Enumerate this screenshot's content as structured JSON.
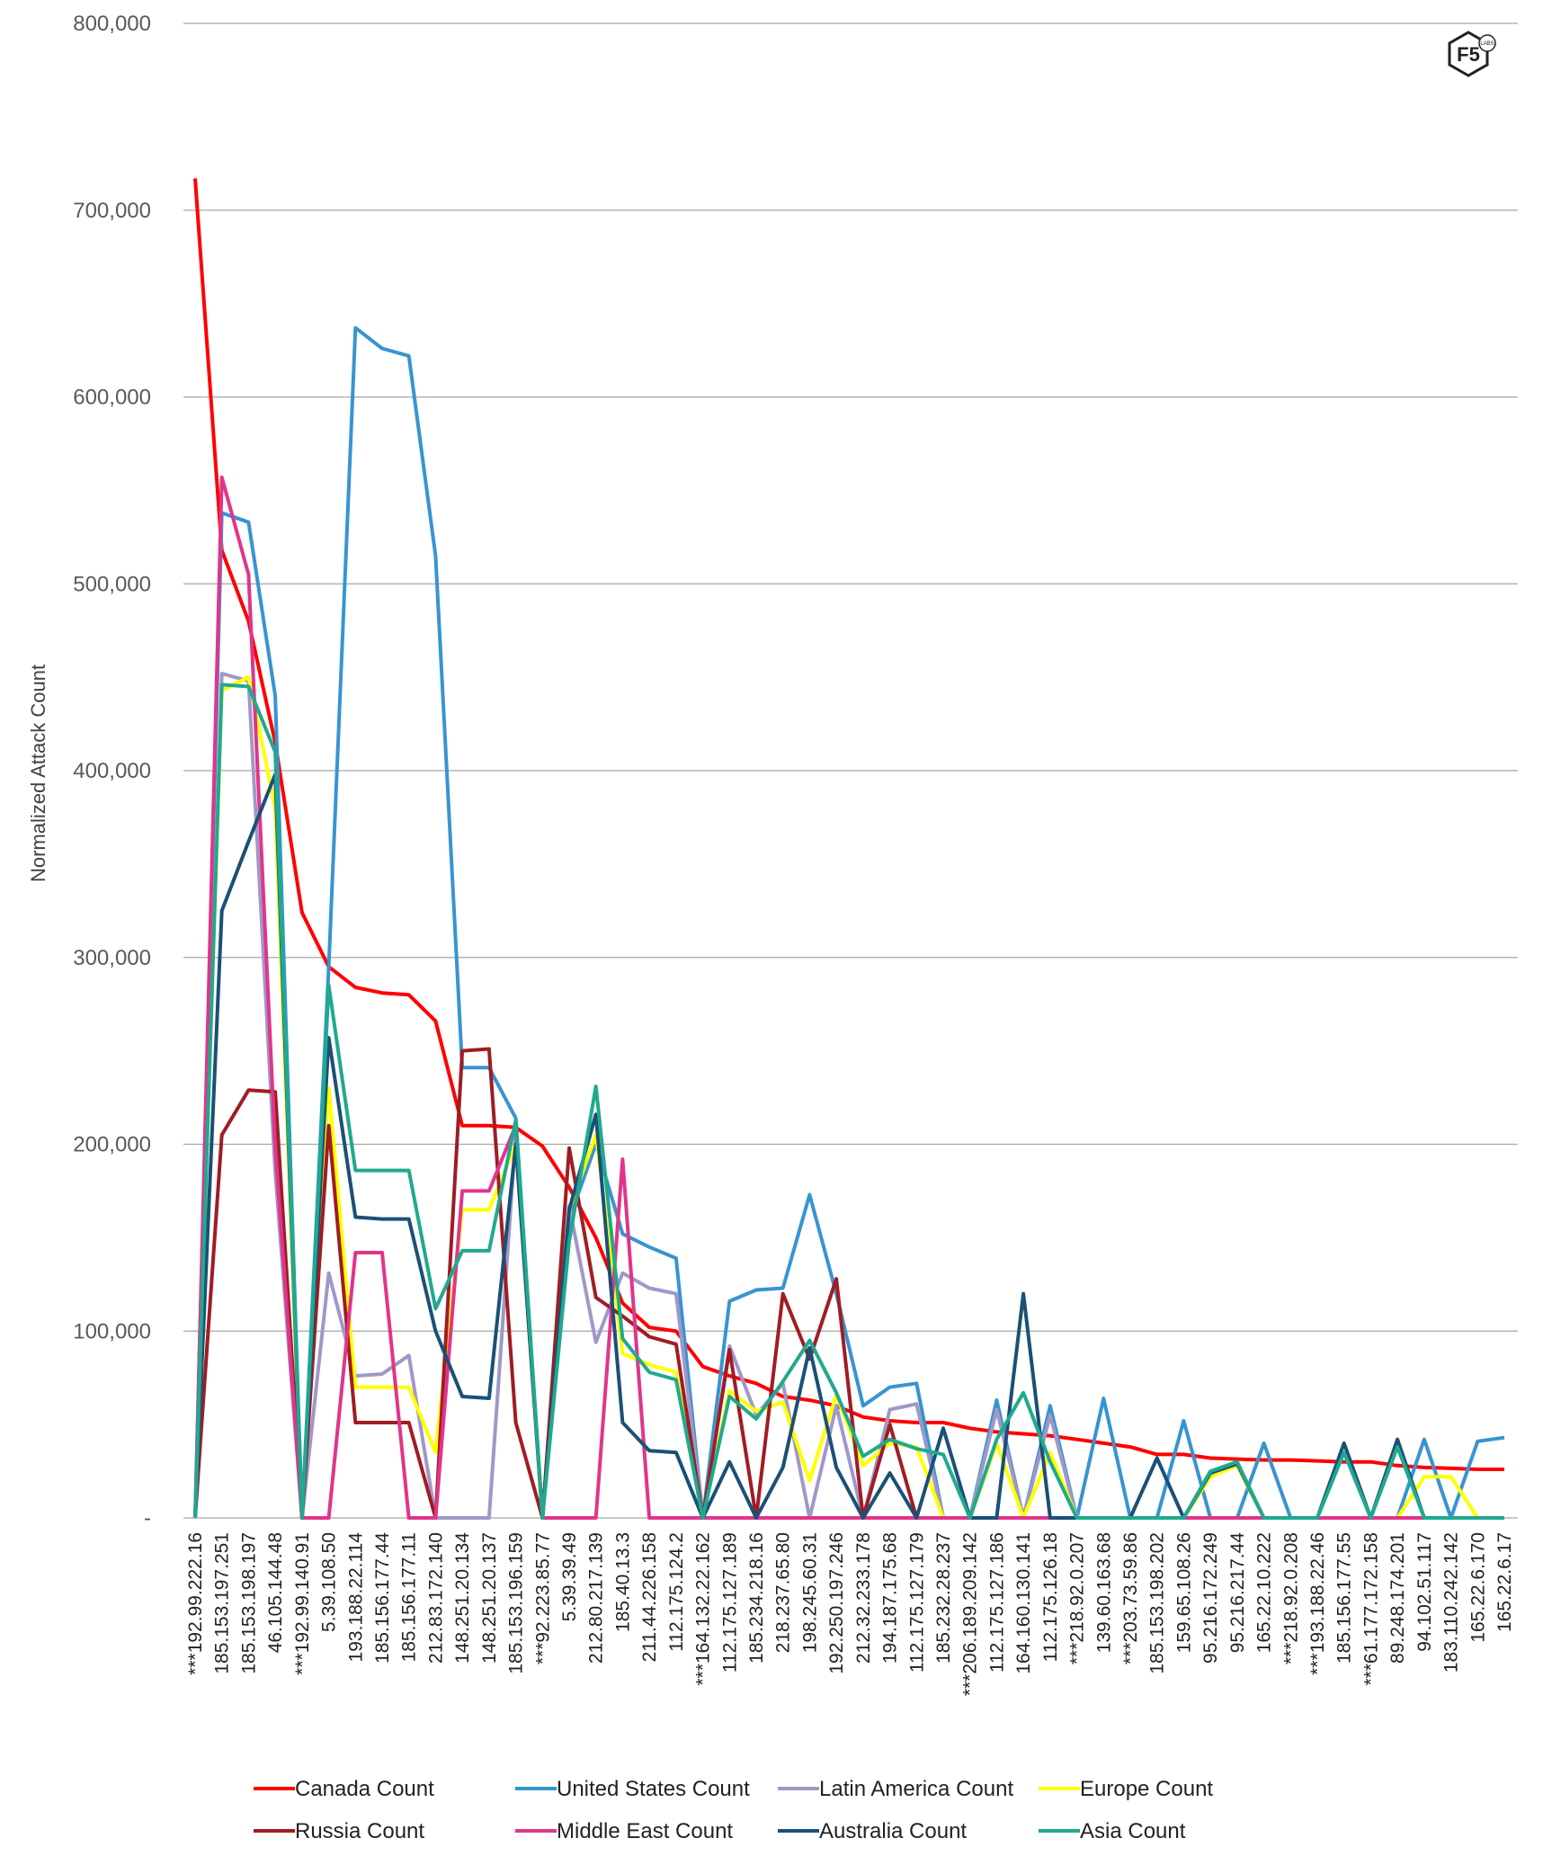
{
  "chart_data": {
    "type": "line",
    "ylabel": "Normalized Attack Count",
    "ylim": [
      0,
      800000
    ],
    "yticks": [
      0,
      100000,
      200000,
      300000,
      400000,
      500000,
      600000,
      700000,
      800000
    ],
    "ytick_labels": [
      "-",
      "100,000",
      "200,000",
      "300,000",
      "400,000",
      "500,000",
      "600,000",
      "700,000",
      "800,000"
    ],
    "grid": true,
    "legend_position": "bottom",
    "categories": [
      "***192.99.222.16",
      "185.153.197.251",
      "185.153.198.197",
      "46.105.144.48",
      "***192.99.140.91",
      "5.39.108.50",
      "193.188.22.114",
      "185.156.177.44",
      "185.156.177.11",
      "212.83.172.140",
      "148.251.20.134",
      "148.251.20.137",
      "185.153.196.159",
      "***92.223.85.77",
      "5.39.39.49",
      "212.80.217.139",
      "185.40.13.3",
      "211.44.226.158",
      "112.175.124.2",
      "***164.132.22.162",
      "112.175.127.189",
      "185.234.218.16",
      "218.237.65.80",
      "198.245.60.31",
      "192.250.197.246",
      "212.32.233.178",
      "194.187.175.68",
      "112.175.127.179",
      "185.232.28.237",
      "***206.189.209.142",
      "112.175.127.186",
      "164.160.130.141",
      "112.175.126.18",
      "***218.92.0.207",
      "139.60.163.68",
      "***203.73.59.86",
      "185.153.198.202",
      "159.65.108.26",
      "95.216.172.249",
      "95.216.217.44",
      "165.22.10.222",
      "***218.92.0.208",
      "***193.188.22.46",
      "185.156.177.55",
      "***61.177.172.158",
      "89.248.174.201",
      "94.102.51.117",
      "183.110.242.142",
      "165.22.6.170",
      "165.22.6.17"
    ],
    "series": [
      {
        "name": "Canada Count",
        "color": "#ff0000",
        "values": [
          717000,
          518000,
          480000,
          415000,
          324000,
          295000,
          284000,
          281000,
          280000,
          266000,
          210000,
          210000,
          209000,
          199000,
          177000,
          150000,
          115000,
          102000,
          100000,
          81000,
          76000,
          72000,
          65000,
          63000,
          60000,
          54000,
          52000,
          51000,
          51000,
          48000,
          46000,
          45000,
          44000,
          42000,
          40000,
          38000,
          34000,
          34000,
          32000,
          31500,
          31000,
          31000,
          30500,
          30000,
          30000,
          28000,
          27000,
          26500,
          26000,
          26000
        ]
      },
      {
        "name": "United States Count",
        "color": "#3894d1",
        "values": [
          0,
          538000,
          533000,
          440000,
          0,
          295000,
          637000,
          626000,
          622000,
          515000,
          241000,
          241000,
          214000,
          0,
          160000,
          200000,
          152000,
          145000,
          139000,
          0,
          116000,
          122000,
          123000,
          173000,
          120000,
          60000,
          70000,
          72000,
          0,
          0,
          63000,
          0,
          60000,
          0,
          64000,
          0,
          0,
          52000,
          0,
          0,
          40000,
          0,
          0,
          0,
          0,
          0,
          42000,
          0,
          41000,
          43000
        ]
      },
      {
        "name": "Latin America Count",
        "color": "#a098c8",
        "values": [
          0,
          452000,
          448000,
          185000,
          0,
          131000,
          76000,
          77000,
          87000,
          0,
          0,
          0,
          205000,
          0,
          167000,
          94000,
          131000,
          123000,
          120000,
          0,
          92000,
          55000,
          72000,
          0,
          60000,
          0,
          58000,
          61000,
          0,
          0,
          58000,
          0,
          55000,
          0,
          0,
          0,
          0,
          0,
          0,
          0,
          0,
          0,
          0,
          0,
          0,
          0,
          0,
          0,
          0,
          0
        ]
      },
      {
        "name": "Europe Count",
        "color": "#ffff00",
        "values": [
          0,
          443000,
          450000,
          380000,
          0,
          230000,
          70000,
          70000,
          70000,
          35000,
          165000,
          165000,
          200000,
          0,
          165000,
          205000,
          88000,
          82000,
          78000,
          0,
          68000,
          57000,
          62000,
          20000,
          66000,
          28000,
          40000,
          38000,
          0,
          0,
          40000,
          0,
          35000,
          0,
          0,
          0,
          0,
          0,
          22000,
          28000,
          0,
          0,
          0,
          0,
          0,
          0,
          22000,
          22000,
          0,
          0
        ]
      },
      {
        "name": "Russia Count",
        "color": "#a01c24",
        "values": [
          0,
          205000,
          229000,
          228000,
          0,
          210000,
          51000,
          51000,
          51000,
          0,
          250000,
          251000,
          51000,
          0,
          198000,
          118000,
          108000,
          97000,
          93000,
          0,
          90000,
          0,
          120000,
          85000,
          128000,
          0,
          50000,
          0,
          0,
          0,
          0,
          0,
          0,
          0,
          0,
          0,
          0,
          0,
          0,
          0,
          0,
          0,
          0,
          0,
          0,
          0,
          0,
          0,
          0,
          0
        ]
      },
      {
        "name": "Middle East Count",
        "color": "#e0358a",
        "values": [
          0,
          557000,
          505000,
          198000,
          0,
          0,
          142000,
          142000,
          0,
          0,
          175000,
          175000,
          210000,
          0,
          0,
          0,
          192000,
          0,
          0,
          0,
          0,
          0,
          0,
          0,
          0,
          0,
          0,
          0,
          0,
          0,
          0,
          0,
          0,
          0,
          0,
          0,
          0,
          0,
          0,
          0,
          0,
          0,
          0,
          0,
          0,
          0,
          0,
          0,
          0,
          0
        ]
      },
      {
        "name": "Australia Count",
        "color": "#1b5076",
        "values": [
          0,
          325000,
          362000,
          398000,
          0,
          257000,
          161000,
          160000,
          160000,
          100000,
          65000,
          64000,
          200000,
          0,
          165000,
          216000,
          51000,
          36000,
          35000,
          0,
          30000,
          0,
          27000,
          91000,
          27000,
          0,
          24000,
          0,
          48000,
          0,
          0,
          120000,
          0,
          0,
          0,
          0,
          32000,
          0,
          24000,
          29000,
          0,
          0,
          0,
          40000,
          0,
          42000,
          0,
          0,
          0,
          0
        ]
      },
      {
        "name": "Asia Count",
        "color": "#20a98e",
        "values": [
          0,
          446000,
          445000,
          410000,
          0,
          285000,
          186000,
          186000,
          186000,
          112000,
          143000,
          143000,
          213000,
          0,
          148000,
          231000,
          96000,
          78000,
          74000,
          0,
          65000,
          53000,
          73000,
          95000,
          67000,
          33000,
          42000,
          37000,
          34000,
          0,
          42000,
          67000,
          30000,
          0,
          0,
          0,
          0,
          0,
          25000,
          30000,
          0,
          0,
          0,
          35000,
          0,
          38000,
          0,
          0,
          0,
          0
        ]
      }
    ]
  },
  "logo": {
    "text": "F5",
    "subtext": "LABS"
  }
}
